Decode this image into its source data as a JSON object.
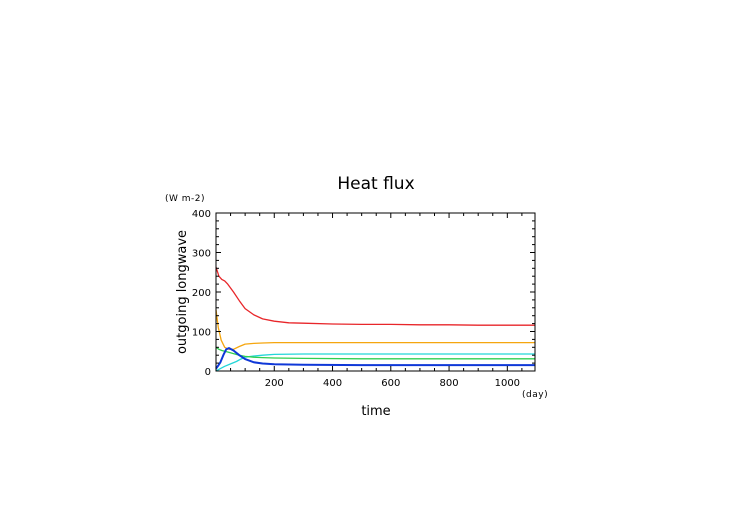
{
  "chart_data": {
    "type": "line",
    "title": "Heat flux",
    "xlabel": "time",
    "ylabel": "outgoing longwave",
    "x_unit": "(day)",
    "y_unit": "(W m-2)",
    "xlim": [
      0,
      1095
    ],
    "ylim": [
      0,
      400
    ],
    "x_ticks": [
      200,
      400,
      600,
      800,
      1000
    ],
    "y_ticks": [
      0,
      100,
      200,
      300,
      400
    ],
    "grid": false,
    "series": [
      {
        "color": "#e8262a",
        "points": [
          [
            0,
            263
          ],
          [
            10,
            240
          ],
          [
            20,
            232
          ],
          [
            30,
            228
          ],
          [
            40,
            220
          ],
          [
            60,
            200
          ],
          [
            80,
            178
          ],
          [
            100,
            158
          ],
          [
            130,
            142
          ],
          [
            160,
            132
          ],
          [
            200,
            126
          ],
          [
            250,
            122
          ],
          [
            300,
            121
          ],
          [
            400,
            119
          ],
          [
            500,
            118
          ],
          [
            600,
            118
          ],
          [
            700,
            117
          ],
          [
            800,
            117
          ],
          [
            900,
            116
          ],
          [
            1000,
            116
          ],
          [
            1095,
            116
          ]
        ]
      },
      {
        "color": "#f5a60f",
        "points": [
          [
            0,
            155
          ],
          [
            8,
            110
          ],
          [
            18,
            78
          ],
          [
            30,
            60
          ],
          [
            45,
            55
          ],
          [
            60,
            55
          ],
          [
            80,
            62
          ],
          [
            100,
            68
          ],
          [
            130,
            70
          ],
          [
            160,
            71
          ],
          [
            200,
            72
          ],
          [
            300,
            72
          ],
          [
            500,
            72
          ],
          [
            700,
            72
          ],
          [
            900,
            72
          ],
          [
            1095,
            72
          ]
        ]
      },
      {
        "color": "#22d6d8",
        "points": [
          [
            0,
            0
          ],
          [
            15,
            6
          ],
          [
            30,
            12
          ],
          [
            50,
            18
          ],
          [
            70,
            24
          ],
          [
            85,
            30
          ],
          [
            100,
            35
          ],
          [
            130,
            38
          ],
          [
            160,
            40
          ],
          [
            200,
            42
          ],
          [
            300,
            43
          ],
          [
            500,
            43
          ],
          [
            700,
            43
          ],
          [
            900,
            43
          ],
          [
            1095,
            43
          ]
        ]
      },
      {
        "color": "#2fcf4f",
        "points": [
          [
            0,
            60
          ],
          [
            10,
            55
          ],
          [
            20,
            52
          ],
          [
            40,
            48
          ],
          [
            60,
            44
          ],
          [
            80,
            40
          ],
          [
            100,
            37
          ],
          [
            130,
            35
          ],
          [
            160,
            34
          ],
          [
            200,
            33
          ],
          [
            300,
            32
          ],
          [
            500,
            31
          ],
          [
            700,
            31
          ],
          [
            900,
            31
          ],
          [
            1095,
            31
          ]
        ]
      },
      {
        "color": "#0f38d8",
        "points": [
          [
            0,
            6
          ],
          [
            8,
            14
          ],
          [
            15,
            22
          ],
          [
            25,
            40
          ],
          [
            35,
            55
          ],
          [
            45,
            58
          ],
          [
            60,
            52
          ],
          [
            80,
            40
          ],
          [
            100,
            30
          ],
          [
            130,
            22
          ],
          [
            160,
            19
          ],
          [
            200,
            17
          ],
          [
            300,
            16
          ],
          [
            500,
            15
          ],
          [
            700,
            15
          ],
          [
            900,
            15
          ],
          [
            1095,
            15
          ]
        ]
      }
    ]
  }
}
